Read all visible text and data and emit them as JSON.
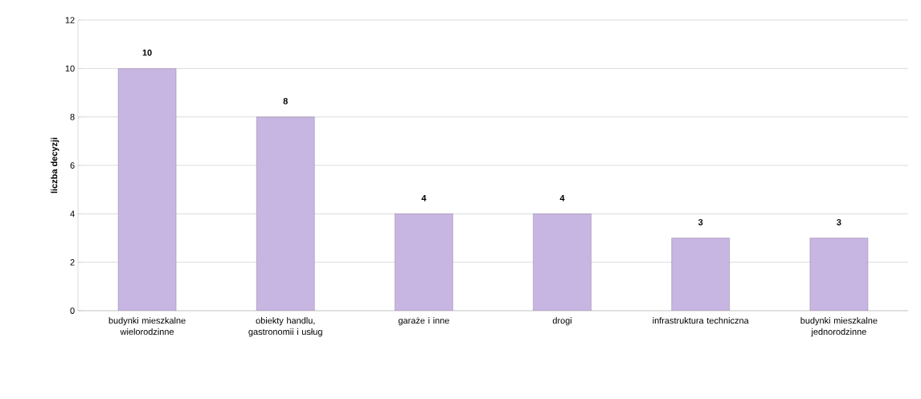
{
  "chart_data": {
    "type": "bar",
    "ylabel": "liczba decyzji",
    "categories": [
      "budynki mieszkalne wielorodzinne",
      "obiekty handlu, gastronomii i usług",
      "garaże i inne",
      "drogi",
      "infrastruktura techniczna",
      "budynki mieszkalne jednorodzinne"
    ],
    "values": [
      10,
      8,
      4,
      4,
      3,
      3
    ],
    "color": "#c8b6e2",
    "ylim": [
      0,
      12
    ],
    "yticks": [
      0,
      2,
      4,
      6,
      8,
      10,
      12
    ],
    "grid": "y",
    "data_labels": true
  }
}
